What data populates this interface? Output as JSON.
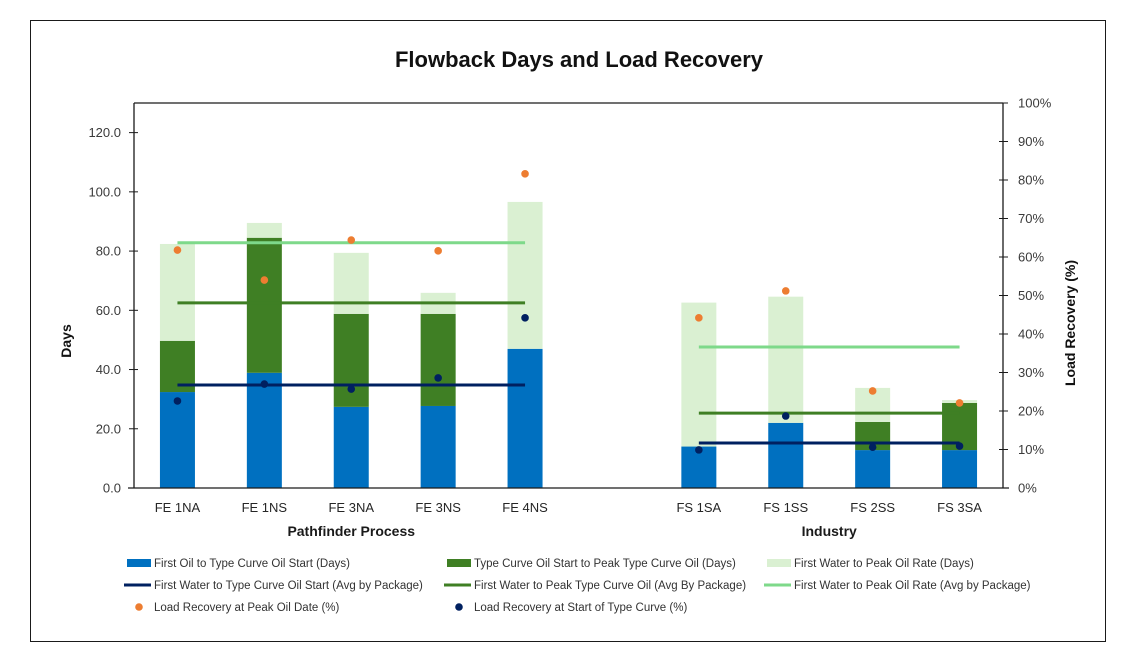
{
  "chart_data": {
    "type": "bar",
    "subtype": "stacked-bar-with-lines-and-scatter",
    "title": "Flowback Days and Load Recovery",
    "ylabel": "Days",
    "y2label": "Load Recovery (%)",
    "ylim": [
      0,
      130
    ],
    "y2lim": [
      0,
      100
    ],
    "yticks": [
      "0.0",
      "20.0",
      "40.0",
      "60.0",
      "80.0",
      "100.0",
      "120.0"
    ],
    "ytick_values": [
      0,
      20,
      40,
      60,
      80,
      100,
      120
    ],
    "y2ticks": [
      "0%",
      "10%",
      "20%",
      "30%",
      "40%",
      "50%",
      "60%",
      "70%",
      "80%",
      "90%",
      "100%"
    ],
    "y2tick_values": [
      0,
      10,
      20,
      30,
      40,
      50,
      60,
      70,
      80,
      90,
      100
    ],
    "grid": false,
    "legend_position": "bottom",
    "groups": [
      {
        "name": "Pathfinder Process",
        "categories": [
          "FE 1NA",
          "FE 1NS",
          "FE 3NA",
          "FE 3NS",
          "FE 4NS"
        ]
      },
      {
        "name": "Industry",
        "categories": [
          "FS 1SA",
          "FS 1SS",
          "FS 2SS",
          "FS 3SA"
        ]
      }
    ],
    "categories": [
      "FE 1NA",
      "FE 1NS",
      "FE 3NA",
      "FE 3NS",
      "FE 4NS",
      "FS 1SA",
      "FS 1SS",
      "FS 2SS",
      "FS 3SA"
    ],
    "series": [
      {
        "name": "First Oil to Type Curve Oil Start (Days)",
        "kind": "stacked-bar",
        "axis": "left",
        "color": "#0070C0",
        "values": [
          32.4,
          38.9,
          27.4,
          27.7,
          47.0,
          14.0,
          22.0,
          12.8,
          12.8
        ]
      },
      {
        "name": "Type Curve Oil Start to Peak Type Curve Oil (Days)",
        "kind": "stacked-bar",
        "axis": "left",
        "color": "#3F7F24",
        "values": [
          17.3,
          45.6,
          31.4,
          31.1,
          0.0,
          0.0,
          0.0,
          9.5,
          15.9
        ]
      },
      {
        "name": "First Water to Peak Oil Rate (Days)",
        "kind": "stacked-bar",
        "axis": "left",
        "color": "#DAF0D2",
        "values": [
          32.7,
          5.0,
          20.6,
          7.1,
          49.6,
          48.6,
          42.6,
          11.5,
          1.0
        ]
      },
      {
        "name": "First Water to Type Curve Oil Start (Avg by Package)",
        "kind": "group-line",
        "axis": "left",
        "color": "#002060",
        "values": [
          34.8,
          15.2
        ]
      },
      {
        "name": "First Water to Peak Type Curve Oil (Avg By Package)",
        "kind": "group-line",
        "axis": "left",
        "color": "#3F7F24",
        "values": [
          62.5,
          25.3
        ]
      },
      {
        "name": "First Water to Peak Oil Rate (Avg by Package)",
        "kind": "group-line",
        "axis": "left",
        "color": "#7ED98A",
        "values": [
          82.8,
          47.6
        ]
      },
      {
        "name": "Load Recovery at Peak Oil Date (%)",
        "kind": "scatter",
        "axis": "right",
        "color": "#ED7D31",
        "values": [
          61.8,
          54.0,
          64.4,
          61.6,
          81.6,
          44.2,
          51.2,
          25.2,
          22.1
        ]
      },
      {
        "name": "Load Recovery at Start of Type Curve (%)",
        "kind": "scatter",
        "axis": "right",
        "color": "#002060",
        "values": [
          22.6,
          27.0,
          25.7,
          28.6,
          44.2,
          9.9,
          18.7,
          10.6,
          10.9
        ]
      }
    ],
    "legend": [
      {
        "label": "First Oil to Type Curve Oil Start (Days)",
        "marker": "bar",
        "color": "#0070C0"
      },
      {
        "label": "Type Curve Oil Start to Peak Type Curve Oil (Days)",
        "marker": "bar",
        "color": "#3F7F24"
      },
      {
        "label": "First Water to Peak Oil Rate (Days)",
        "marker": "bar",
        "color": "#DAF0D2"
      },
      {
        "label": "First Water to Type Curve Oil Start (Avg by Package)",
        "marker": "line",
        "color": "#002060"
      },
      {
        "label": "First Water to Peak Type Curve Oil (Avg By Package)",
        "marker": "line",
        "color": "#3F7F24"
      },
      {
        "label": "First Water to Peak Oil Rate (Avg by Package)",
        "marker": "line",
        "color": "#7ED98A"
      },
      {
        "label": "Load Recovery at Peak Oil Date (%)",
        "marker": "dot",
        "color": "#ED7D31"
      },
      {
        "label": "Load Recovery at Start of Type Curve (%)",
        "marker": "dot",
        "color": "#002060"
      }
    ]
  }
}
